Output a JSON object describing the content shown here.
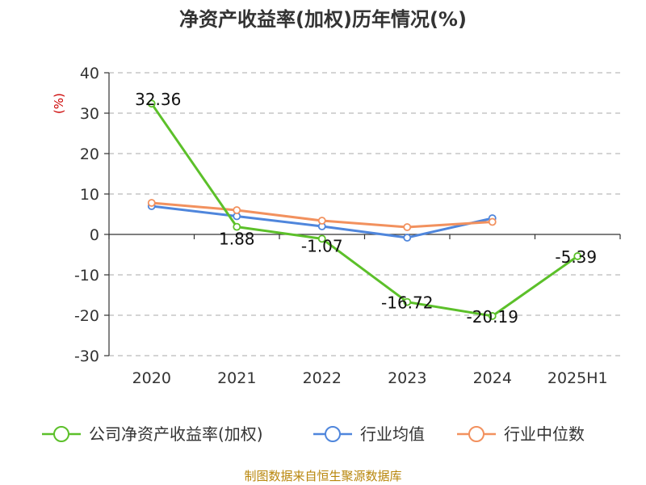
{
  "chart_data": {
    "type": "line",
    "title": "净资产收益率(加权)历年情况(%)",
    "ylabel": "(%)",
    "categories": [
      "2020",
      "2021",
      "2022",
      "2023",
      "2024",
      "2025H1"
    ],
    "yticks": [
      "40",
      "30",
      "20",
      "10",
      "0",
      "-10",
      "-20",
      "-30"
    ],
    "ylim": [
      -30,
      40
    ],
    "grid": true,
    "legend_position": "bottom",
    "series": [
      {
        "name": "公司净资产收益率(加权)",
        "color": "#5cc02a",
        "values": [
          32.36,
          1.88,
          -1.07,
          -16.72,
          -20.19,
          -5.39
        ],
        "labels": [
          "32.36",
          "1.88",
          "-1.07",
          "-16.72",
          "-20.19",
          "-5.39"
        ]
      },
      {
        "name": "行业均值",
        "color": "#4f86dc",
        "values": [
          7.0,
          4.5,
          2.0,
          -0.8,
          4.0,
          null
        ]
      },
      {
        "name": "行业中位数",
        "color": "#f2915e",
        "values": [
          7.8,
          6.0,
          3.4,
          1.8,
          3.1,
          null
        ]
      }
    ]
  },
  "source": "制图数据来自恒生聚源数据库"
}
